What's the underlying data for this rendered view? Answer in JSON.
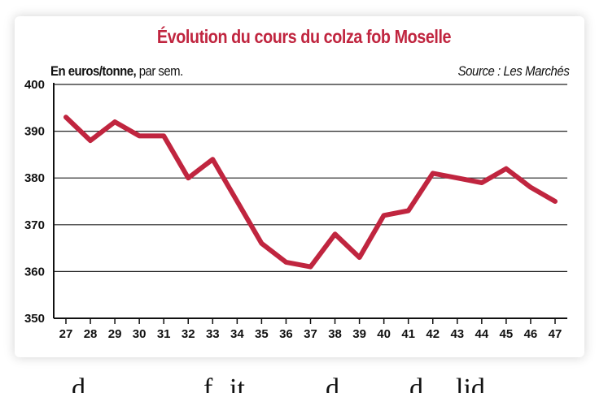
{
  "colors": {
    "title": "#c0253f",
    "line": "#c0253f",
    "grid": "#222222",
    "axis": "#111111"
  },
  "chart_data": {
    "type": "line",
    "title": "Évolution du cours du colza fob Moselle",
    "units_bold": "En euros/tonne,",
    "units_rest": " par sem.",
    "source": "Source : Les Marchés",
    "xlabel": "",
    "ylabel": "",
    "x": [
      "27",
      "28",
      "29",
      "30",
      "31",
      "32",
      "33",
      "34",
      "35",
      "36",
      "37",
      "38",
      "39",
      "40",
      "41",
      "42",
      "43",
      "44",
      "45",
      "46",
      "47"
    ],
    "series": [
      {
        "values": [
          393,
          388,
          392,
          389,
          389,
          380,
          384,
          375,
          366,
          362,
          361,
          368,
          363,
          372,
          373,
          381,
          380,
          379,
          382,
          378,
          375
        ]
      }
    ],
    "ylim": [
      350,
      400
    ],
    "yticks": [
      350,
      360,
      370,
      380,
      390,
      400
    ],
    "grid": "horizontal",
    "legend": "none"
  },
  "bottom_fragments": [
    "d",
    "f",
    "it",
    "d",
    "d",
    "lid"
  ]
}
